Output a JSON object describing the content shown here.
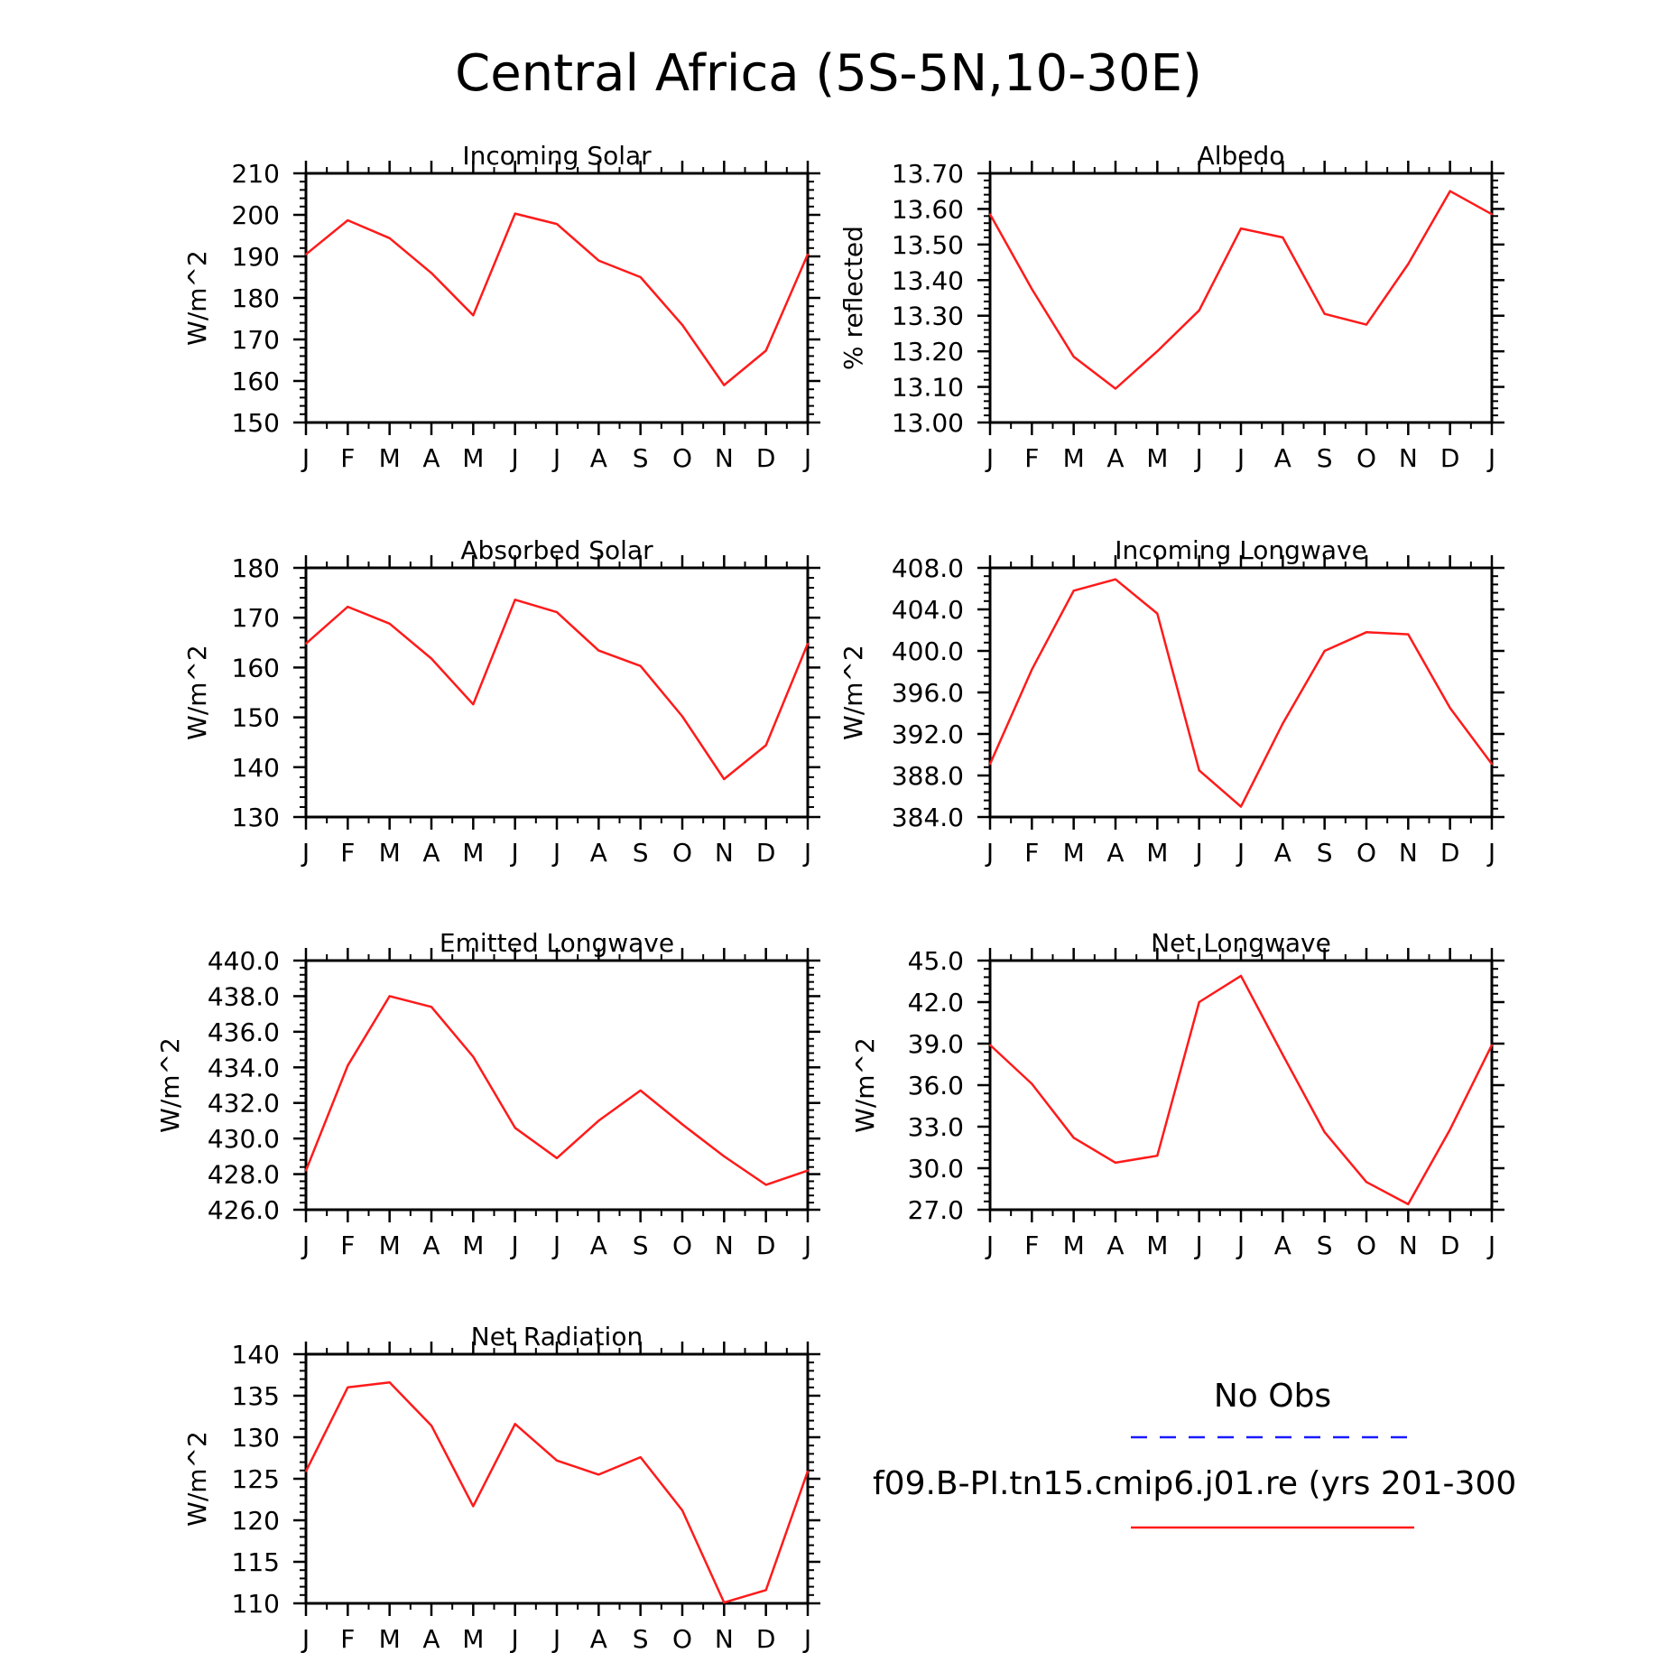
{
  "figure_title": "Central Africa (5S-5N,10-30E)",
  "legend": {
    "obs_label": "No Obs",
    "obs_color": "#1a1aff",
    "model_label": "f09.B-PI.tn15.cmip6.j01.re (yrs 201-300",
    "model_color": "#ff1a1a"
  },
  "chart_data": [
    {
      "type": "line",
      "title": "Incoming Solar",
      "ylabel": "W/m^2",
      "categories": [
        "J",
        "F",
        "M",
        "A",
        "M",
        "J",
        "J",
        "A",
        "S",
        "O",
        "N",
        "D",
        "J"
      ],
      "ylim": [
        150,
        210
      ],
      "yticks": [
        "150",
        "160",
        "170",
        "180",
        "190",
        "200",
        "210"
      ],
      "series": [
        {
          "color": "#ff1a1a",
          "values": [
            190.5,
            198.7,
            194.4,
            186,
            175.8,
            200.3,
            197.8,
            189,
            185,
            173.5,
            159,
            167.3,
            190.5
          ]
        }
      ]
    },
    {
      "type": "line",
      "title": "Albedo",
      "ylabel": "% reflected",
      "categories": [
        "J",
        "F",
        "M",
        "A",
        "M",
        "J",
        "J",
        "A",
        "S",
        "O",
        "N",
        "D",
        "J"
      ],
      "ylim": [
        13.0,
        13.7
      ],
      "yticks": [
        "13.00",
        "13.10",
        "13.20",
        "13.30",
        "13.40",
        "13.50",
        "13.60",
        "13.70"
      ],
      "series": [
        {
          "color": "#ff1a1a",
          "values": [
            13.585,
            13.375,
            13.185,
            13.095,
            13.2,
            13.315,
            13.545,
            13.52,
            13.305,
            13.275,
            13.445,
            13.65,
            13.585
          ]
        }
      ]
    },
    {
      "type": "line",
      "title": "Absorbed Solar",
      "ylabel": "W/m^2",
      "categories": [
        "J",
        "F",
        "M",
        "A",
        "M",
        "J",
        "J",
        "A",
        "S",
        "O",
        "N",
        "D",
        "J"
      ],
      "ylim": [
        130,
        180
      ],
      "yticks": [
        "130",
        "140",
        "150",
        "160",
        "170",
        "180"
      ],
      "series": [
        {
          "color": "#ff1a1a",
          "values": [
            164.8,
            172.2,
            168.8,
            161.8,
            152.6,
            173.6,
            171.1,
            163.4,
            160.3,
            150.2,
            137.6,
            144.4,
            164.8
          ]
        }
      ]
    },
    {
      "type": "line",
      "title": "Incoming Longwave",
      "ylabel": "W/m^2",
      "categories": [
        "J",
        "F",
        "M",
        "A",
        "M",
        "J",
        "J",
        "A",
        "S",
        "O",
        "N",
        "D",
        "J"
      ],
      "ylim": [
        384,
        408
      ],
      "yticks": [
        "384.0",
        "388.0",
        "392.0",
        "396.0",
        "400.0",
        "404.0",
        "408.0"
      ],
      "series": [
        {
          "color": "#ff1a1a",
          "values": [
            389.1,
            398.2,
            405.8,
            406.9,
            403.6,
            388.5,
            385,
            393,
            400,
            401.8,
            401.6,
            394.5,
            389.1
          ]
        }
      ]
    },
    {
      "type": "line",
      "title": "Emitted Longwave",
      "ylabel": "W/m^2",
      "categories": [
        "J",
        "F",
        "M",
        "A",
        "M",
        "J",
        "J",
        "A",
        "S",
        "O",
        "N",
        "D",
        "J"
      ],
      "ylim": [
        426,
        440
      ],
      "yticks": [
        "426.0",
        "428.0",
        "430.0",
        "432.0",
        "434.0",
        "436.0",
        "438.0",
        "440.0"
      ],
      "series": [
        {
          "color": "#ff1a1a",
          "values": [
            428.2,
            434.1,
            438.0,
            437.4,
            434.6,
            430.6,
            428.9,
            431.0,
            432.7,
            430.8,
            429.0,
            427.4,
            428.2
          ]
        }
      ]
    },
    {
      "type": "line",
      "title": "Net Longwave",
      "ylabel": "W/m^2",
      "categories": [
        "J",
        "F",
        "M",
        "A",
        "M",
        "J",
        "J",
        "A",
        "S",
        "O",
        "N",
        "D",
        "J"
      ],
      "ylim": [
        27,
        45
      ],
      "yticks": [
        "27.0",
        "30.0",
        "33.0",
        "36.0",
        "39.0",
        "42.0",
        "45.0"
      ],
      "series": [
        {
          "color": "#ff1a1a",
          "values": [
            38.9,
            36.1,
            32.2,
            30.4,
            30.9,
            42.0,
            43.9,
            38.2,
            32.6,
            29.0,
            27.4,
            32.8,
            38.9
          ]
        }
      ]
    },
    {
      "type": "line",
      "title": "Net Radiation",
      "ylabel": "W/m^2",
      "categories": [
        "J",
        "F",
        "M",
        "A",
        "M",
        "J",
        "J",
        "A",
        "S",
        "O",
        "N",
        "D",
        "J"
      ],
      "ylim": [
        110,
        140
      ],
      "yticks": [
        "110",
        "115",
        "120",
        "125",
        "130",
        "135",
        "140"
      ],
      "series": [
        {
          "color": "#ff1a1a",
          "values": [
            125.9,
            136.0,
            136.6,
            131.4,
            121.7,
            131.6,
            127.2,
            125.5,
            127.6,
            121.2,
            110.1,
            111.6,
            125.9
          ]
        }
      ]
    }
  ]
}
